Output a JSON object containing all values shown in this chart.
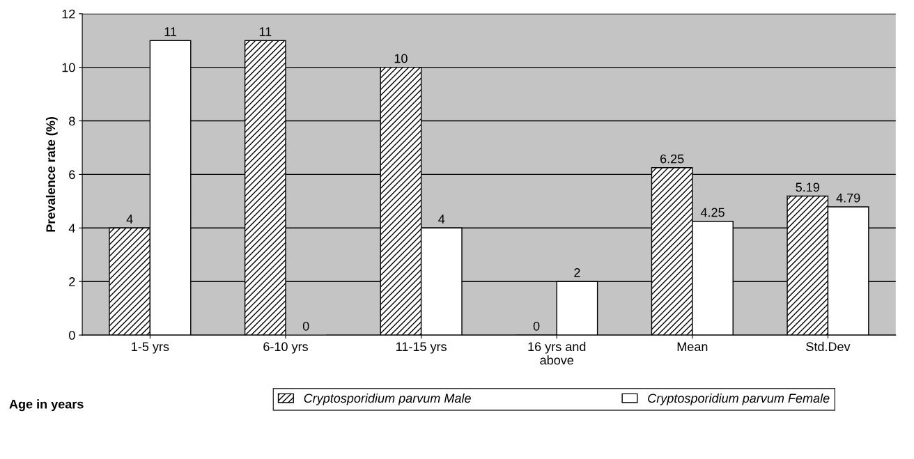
{
  "chart_data": {
    "type": "bar",
    "ylabel": "Prevalence rate (%)",
    "xlabel": "Age in years",
    "categories": [
      "1-5 yrs",
      "6-10 yrs",
      "11-15 yrs",
      "16 yrs and\nabove",
      "Mean",
      "Std.Dev"
    ],
    "series": [
      {
        "name": "Cryptosporidium parvum Male",
        "color": "#000000",
        "values": [
          4,
          11,
          10,
          0,
          6.25,
          5.19
        ]
      },
      {
        "name": "Cryptosporidium parvum Female",
        "color": "#ffffff",
        "values": [
          11,
          0,
          4,
          2,
          4.25,
          4.79
        ]
      }
    ],
    "ylim": [
      0,
      12
    ],
    "yticks": [
      0,
      2,
      4,
      6,
      8,
      10,
      12
    ],
    "grid": "y",
    "legend": "bottom",
    "data_labels": true
  }
}
